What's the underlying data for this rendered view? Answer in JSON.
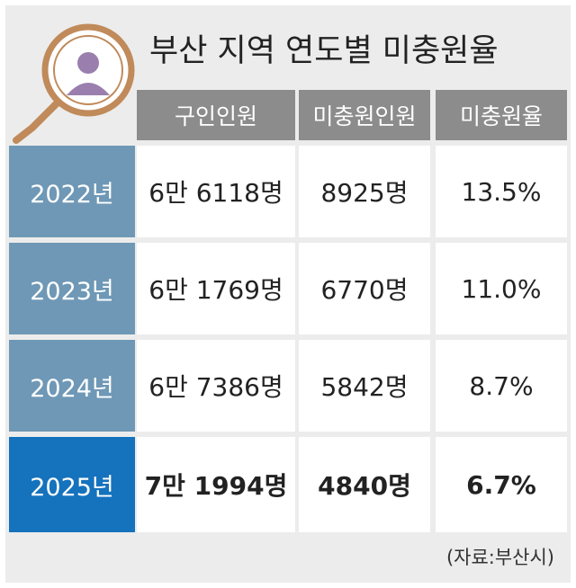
{
  "header": {
    "title": "부산 지역 연도별 미충원율"
  },
  "table": {
    "columns": [
      "구인인원",
      "미충원인원",
      "미충원율"
    ],
    "rows": [
      [
        "2022년",
        "6만 6118명",
        "8925명",
        "13.5%"
      ],
      [
        "2023년",
        "6만 1769명",
        "6770명",
        "11.0%"
      ],
      [
        "2024년",
        "6만 7386명",
        "5842명",
        "8.7%"
      ],
      [
        "2025년",
        "7만 1994명",
        "4840명",
        "6.7%"
      ]
    ]
  },
  "footer": {
    "source": "(자료:부산시)"
  }
}
